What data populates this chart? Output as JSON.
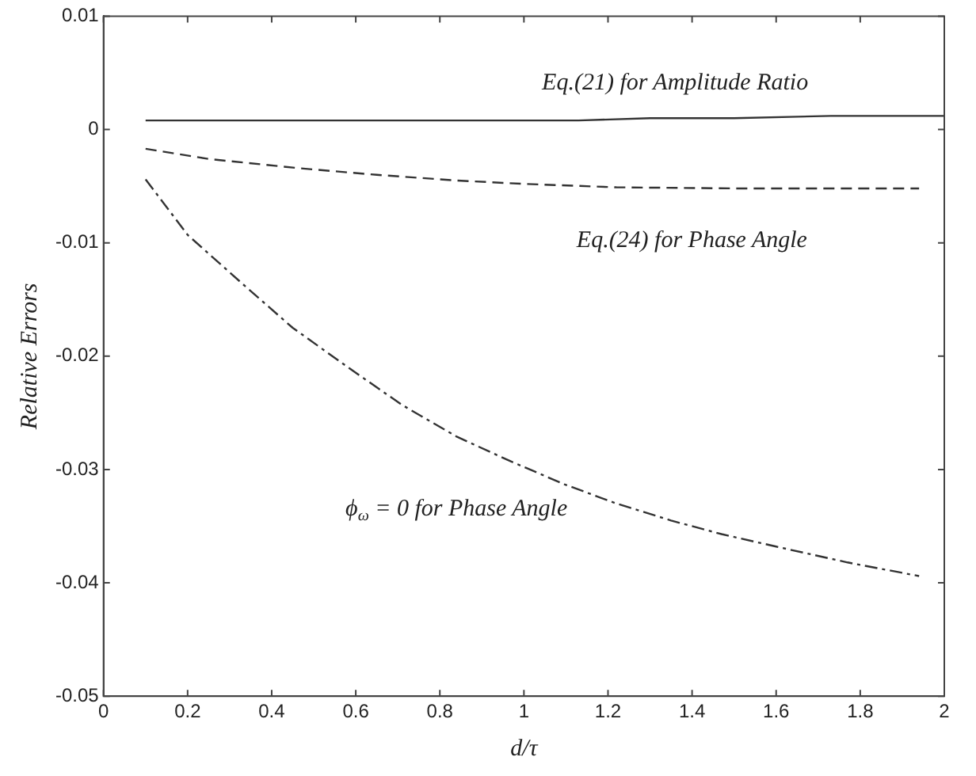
{
  "chart_data": {
    "type": "line",
    "xlabel": "d/τ",
    "ylabel": "Relative Errors",
    "xlim": [
      0,
      2
    ],
    "xticks": [
      0,
      0.2,
      0.4,
      0.6,
      0.8,
      1,
      1.2,
      1.4,
      1.6,
      1.8,
      2
    ],
    "ylim": [
      -0.05,
      0.01
    ],
    "yticks": [
      -0.05,
      -0.04,
      -0.03,
      -0.02,
      -0.01,
      0,
      0.01
    ],
    "grid": false,
    "legend": false,
    "marker": "none",
    "series": [
      {
        "name": "Eq.(21) for Amplitude Ratio",
        "color": "#333333",
        "line_style": "solid",
        "x": [
          0.1,
          0.5,
          1.0,
          1.13,
          1.3,
          1.5,
          1.73,
          2.0
        ],
        "values": [
          0.0008,
          0.0008,
          0.0008,
          0.0008,
          0.001,
          0.001,
          0.0012,
          0.0012
        ]
      },
      {
        "name": "Eq.(24) for Phase Angle",
        "color": "#333333",
        "line_style": "dashed",
        "x": [
          0.1,
          0.25,
          0.46,
          0.65,
          0.84,
          1.0,
          1.22,
          1.5,
          1.94
        ],
        "values": [
          -0.0017,
          -0.0026,
          -0.0034,
          -0.004,
          -0.0045,
          -0.0048,
          -0.0051,
          -0.0052,
          -0.0052
        ]
      },
      {
        "name": "ϕ$_{ω}$ = 0 for Phase Angle",
        "color": "#333333",
        "line_style": "dashdot",
        "x": [
          0.1,
          0.2,
          0.33,
          0.45,
          0.586,
          0.71,
          0.84,
          0.97,
          1.096,
          1.22,
          1.35,
          1.47,
          1.6,
          1.77,
          1.94
        ],
        "values": [
          -0.0044,
          -0.0093,
          -0.0136,
          -0.0175,
          -0.0211,
          -0.0243,
          -0.0271,
          -0.0293,
          -0.0313,
          -0.033,
          -0.0345,
          -0.0357,
          -0.0368,
          -0.0382,
          -0.0394
        ]
      }
    ]
  }
}
